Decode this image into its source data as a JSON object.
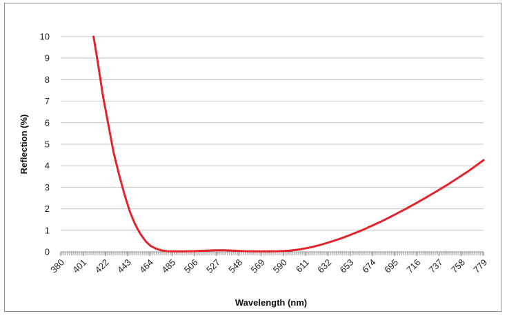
{
  "chart_data": {
    "type": "line",
    "title": "",
    "xlabel": "Wavelength (nm)",
    "ylabel": "Reflection (%)",
    "xlim": [
      380,
      779
    ],
    "ylim": [
      0,
      10
    ],
    "grid": true,
    "legend": "none",
    "x_ticks": [
      380,
      401,
      422,
      443,
      464,
      485,
      506,
      527,
      548,
      569,
      590,
      611,
      632,
      653,
      674,
      695,
      716,
      737,
      758,
      779
    ],
    "y_ticks": [
      0,
      1,
      2,
      3,
      4,
      5,
      6,
      7,
      8,
      9,
      10
    ],
    "series": [
      {
        "color": "#e3242b",
        "x": [
          411,
          415,
          420,
          425,
          430,
          435,
          440,
          445,
          450,
          455,
          460,
          465,
          470,
          475,
          480,
          485,
          495,
          505,
          515,
          525,
          535,
          545,
          555,
          565,
          575,
          585,
          595,
          605,
          615,
          625,
          635,
          645,
          655,
          665,
          675,
          685,
          695,
          705,
          715,
          725,
          735,
          745,
          755,
          765,
          779
        ],
        "y": [
          10,
          8.8,
          7.2,
          5.9,
          4.6,
          3.6,
          2.7,
          1.9,
          1.3,
          0.85,
          0.5,
          0.27,
          0.14,
          0.07,
          0.03,
          0.02,
          0.02,
          0.03,
          0.05,
          0.07,
          0.07,
          0.05,
          0.03,
          0.02,
          0.02,
          0.03,
          0.05,
          0.11,
          0.2,
          0.32,
          0.47,
          0.63,
          0.82,
          1.02,
          1.24,
          1.47,
          1.72,
          1.98,
          2.25,
          2.53,
          2.82,
          3.12,
          3.44,
          3.76,
          4.26
        ]
      }
    ]
  }
}
